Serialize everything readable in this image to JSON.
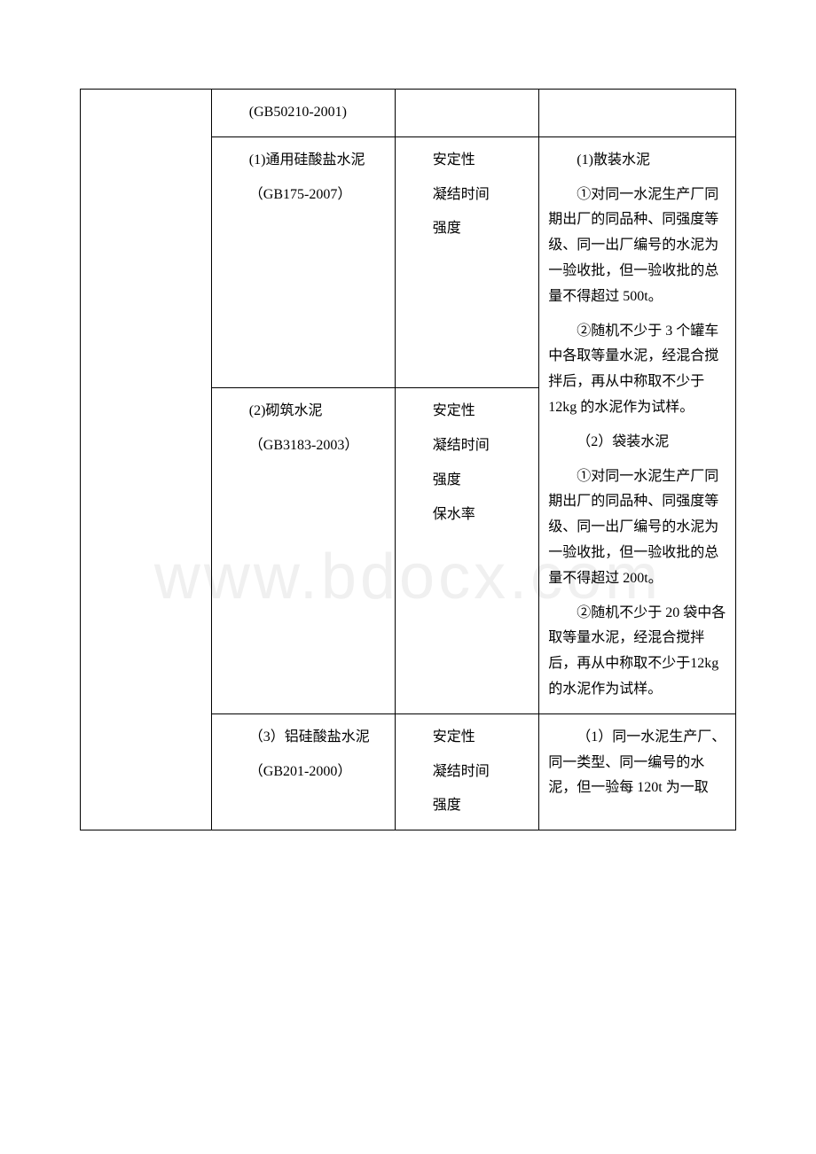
{
  "watermark": "www.bdocx.com",
  "table": {
    "border_color": "#000000",
    "background_color": "#ffffff",
    "text_color": "#000000",
    "font_family": "SimSun",
    "font_size": 16,
    "columns": [
      {
        "width_pct": 20
      },
      {
        "width_pct": 28
      },
      {
        "width_pct": 22
      },
      {
        "width_pct": 30
      }
    ],
    "rows": [
      {
        "cells": [
          {
            "rowspan": 4,
            "content": []
          },
          {
            "content": [
              {
                "text": "(GB50210-2001)"
              }
            ]
          },
          {
            "content": []
          },
          {
            "content": []
          }
        ]
      },
      {
        "cells": [
          {
            "content": [
              {
                "text": "(1)通用硅酸盐水泥"
              },
              {
                "text": "（GB175-2007）"
              }
            ]
          },
          {
            "content": [
              {
                "text": "安定性"
              },
              {
                "text": "凝结时间"
              },
              {
                "text": "强度"
              }
            ]
          },
          {
            "rowspan": 2,
            "content": [
              {
                "text": "(1)散装水泥"
              },
              {
                "text": "①对同一水泥生产厂同期出厂的同品种、同强度等级、同一出厂编号的水泥为一验收批，但一验收批的总量不得超过 500t。"
              },
              {
                "text": "②随机不少于 3 个罐车中各取等量水泥，经混合搅拌后，再从中称取不少于12kg 的水泥作为试样。"
              },
              {
                "text": "（2）袋装水泥"
              },
              {
                "text": "①对同一水泥生产厂同期出厂的同品种、同强度等级、同一出厂编号的水泥为一验收批，但一验收批的总量不得超过 200t。"
              },
              {
                "text": "②随机不少于 20 袋中各取等量水泥，经混合搅拌后，再从中称取不少于12kg 的水泥作为试样。"
              }
            ]
          }
        ]
      },
      {
        "cells": [
          {
            "content": [
              {
                "text": "(2)砌筑水泥"
              },
              {
                "text": "（GB3183-2003）"
              }
            ]
          },
          {
            "content": [
              {
                "text": "安定性"
              },
              {
                "text": "凝结时间"
              },
              {
                "text": "强度"
              },
              {
                "text": "保水率"
              }
            ]
          }
        ]
      },
      {
        "cells": [
          {
            "content": [
              {
                "text": "（3）铝硅酸盐水泥"
              },
              {
                "text": "（GB201-2000）"
              }
            ]
          },
          {
            "content": [
              {
                "text": "安定性"
              },
              {
                "text": "凝结时间"
              },
              {
                "text": "强度"
              }
            ]
          },
          {
            "content": [
              {
                "text": "（1）同一水泥生产厂、同一类型、同一编号的水泥，但一验每 120t 为一取"
              }
            ]
          }
        ]
      }
    ]
  }
}
